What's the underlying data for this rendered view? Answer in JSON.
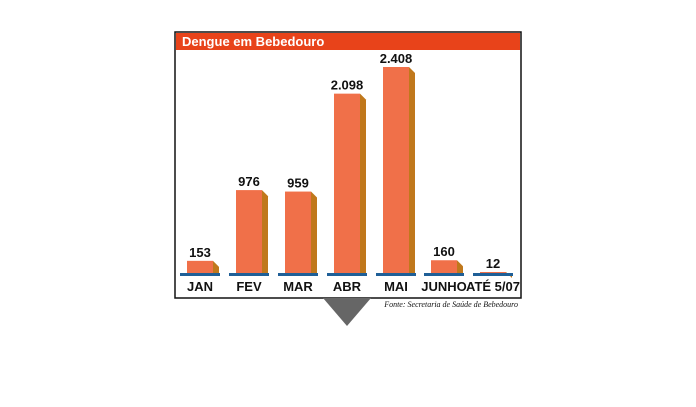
{
  "chart_data": {
    "type": "bar",
    "title": "Dengue em Bebedouro",
    "categories": [
      "JAN",
      "FEV",
      "MAR",
      "ABR",
      "MAI",
      "JUNHO",
      "ATÉ 5/07"
    ],
    "values": [
      153,
      976,
      959,
      2098,
      2408,
      160,
      12
    ],
    "value_labels": [
      "153",
      "976",
      "959",
      "2.098",
      "2.408",
      "160",
      "12"
    ],
    "source": "Fonte: Secretaria de Saúde de Bebedouro",
    "ylim": [
      0,
      2408
    ],
    "grid": false,
    "legend": "none"
  },
  "colors": {
    "title_bar": "#E8431A",
    "bar_front": "#F07049",
    "bar_side": "#C0781C",
    "baseline": "#1F5F97",
    "frame": "#111111",
    "pointer": "#666666"
  }
}
